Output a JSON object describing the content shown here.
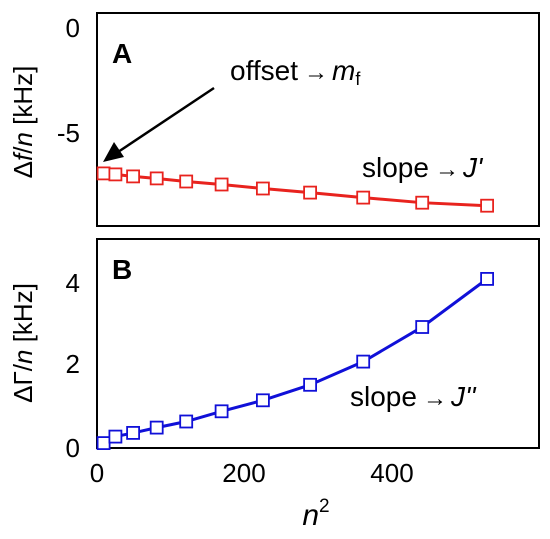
{
  "chart_data": [
    {
      "type": "line",
      "panel": "A",
      "x": [
        9,
        25,
        49,
        81,
        121,
        169,
        225,
        289,
        361,
        441,
        529
      ],
      "series": [
        {
          "values": [
            -7.0,
            -7.05,
            -7.15,
            -7.25,
            -7.4,
            -7.55,
            -7.75,
            -7.95,
            -8.2,
            -8.45,
            -8.6
          ],
          "color": "#e8231e",
          "marker": "open-square"
        }
      ],
      "ylabel": {
        "delta": "Δ",
        "var": "f",
        "sep": "/",
        "n": "n",
        "unit": " [kHz]"
      },
      "xlim": [
        0,
        600
      ],
      "ylim": [
        -10,
        0
      ],
      "yticks": [
        "0",
        "-5"
      ],
      "annotations": [
        {
          "text": "offset",
          "arrow": "→",
          "symbol": "m",
          "subscript": "f"
        },
        {
          "text": "slope",
          "arrow": "→",
          "symbol": "J",
          "prime": "'"
        }
      ]
    },
    {
      "type": "line",
      "panel": "B",
      "x": [
        9,
        25,
        49,
        81,
        121,
        169,
        225,
        289,
        361,
        441,
        529
      ],
      "series": [
        {
          "values": [
            0.12,
            0.28,
            0.37,
            0.5,
            0.65,
            0.9,
            1.17,
            1.55,
            2.12,
            2.97,
            4.15
          ],
          "color": "#1010d8",
          "marker": "open-square"
        }
      ],
      "ylabel": {
        "delta": "ΔΓ",
        "sep": "/",
        "n": "n",
        "unit": " [kHz]"
      },
      "xlabel": {
        "base": "n",
        "exp": "2"
      },
      "xlim": [
        0,
        600
      ],
      "ylim": [
        0,
        5
      ],
      "xticks": [
        "0",
        "200",
        "400"
      ],
      "yticks": [
        "0",
        "2",
        "4"
      ],
      "annotations": [
        {
          "text": "slope",
          "arrow": "→",
          "symbol": "J",
          "prime": "''"
        }
      ]
    }
  ]
}
